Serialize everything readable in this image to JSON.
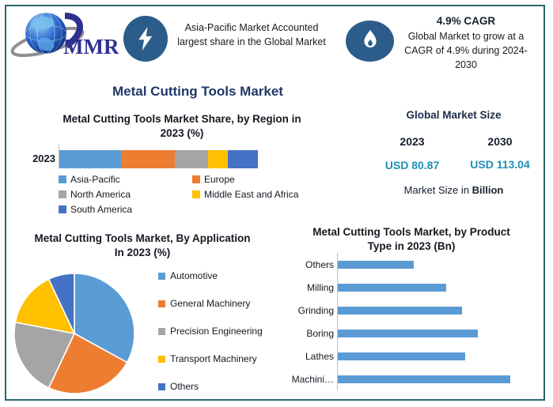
{
  "theme": {
    "border_teal": "#2a6570",
    "icon_blue": "#2b5c8a",
    "title_navy": "#20386b",
    "navy_dark": "#1c2c4a",
    "heading_dark": "#1a1a24",
    "value_teal": "#1f8fb8",
    "logo_navy": "#2e3192"
  },
  "header": {
    "logo_text": "MMR",
    "highlight_text": "Asia-Pacific Market Accounted largest share in the Global Market",
    "cagr_headline": "4.9% CAGR",
    "cagr_body": "Global Market to grow at a CAGR of 4.9% during 2024-2030"
  },
  "main_title": "Metal Cutting Tools Market",
  "market_size": {
    "title": "Global Market Size",
    "year_left": "2023",
    "year_right": "2030",
    "value_left": "USD 80.87",
    "value_right": "USD 113.04",
    "note_prefix": "Market Size in ",
    "note_bold": "Billion"
  },
  "chart_data": [
    {
      "id": "region_share",
      "type": "bar",
      "variant": "stacked_horizontal",
      "title": "Metal Cutting Tools Market Share, by Region in 2023 (%)",
      "categories": [
        "2023"
      ],
      "series": [
        {
          "name": "Asia-Pacific",
          "values": [
            31
          ],
          "color": "#5B9BD5"
        },
        {
          "name": "Europe",
          "values": [
            27
          ],
          "color": "#ED7D31"
        },
        {
          "name": "North America",
          "values": [
            17
          ],
          "color": "#A5A5A5"
        },
        {
          "name": "Middle East and Africa",
          "values": [
            10
          ],
          "color": "#FFC000"
        },
        {
          "name": "South America",
          "values": [
            15
          ],
          "color": "#4472C4"
        }
      ],
      "xlim": [
        0,
        100
      ],
      "legend_position": "bottom",
      "notes": "Segment shares estimated from bar widths; no data labels shown"
    },
    {
      "id": "application_pie",
      "type": "pie",
      "title": "Metal Cutting Tools Market, By Application In 2023 (%)",
      "labels": [
        "Automotive",
        "General Machinery",
        "Precision Engineering",
        "Transport Machinery",
        "Others"
      ],
      "values": [
        33,
        24,
        21,
        15,
        7
      ],
      "colors": [
        "#5B9BD5",
        "#ED7D31",
        "#A5A5A5",
        "#FFC000",
        "#4472C4"
      ],
      "start_angle_deg": 0,
      "direction": "clockwise",
      "legend_position": "right",
      "notes": "Slice percentages estimated from angles; no data labels shown"
    },
    {
      "id": "product_type_bar",
      "type": "bar",
      "variant": "horizontal",
      "title": "Metal Cutting Tools Market, by Product Type in 2023 (Bn)",
      "categories": [
        "Others",
        "Milling",
        "Grinding",
        "Boring",
        "Lathes",
        "Machini…"
      ],
      "values": [
        44,
        63,
        72,
        81,
        74,
        100
      ],
      "value_scale": "percent_of_longest_bar",
      "color": "#5B9BD5",
      "notes": "No value axis labels shown; values are relative bar lengths. Last category label truncated in image."
    }
  ]
}
